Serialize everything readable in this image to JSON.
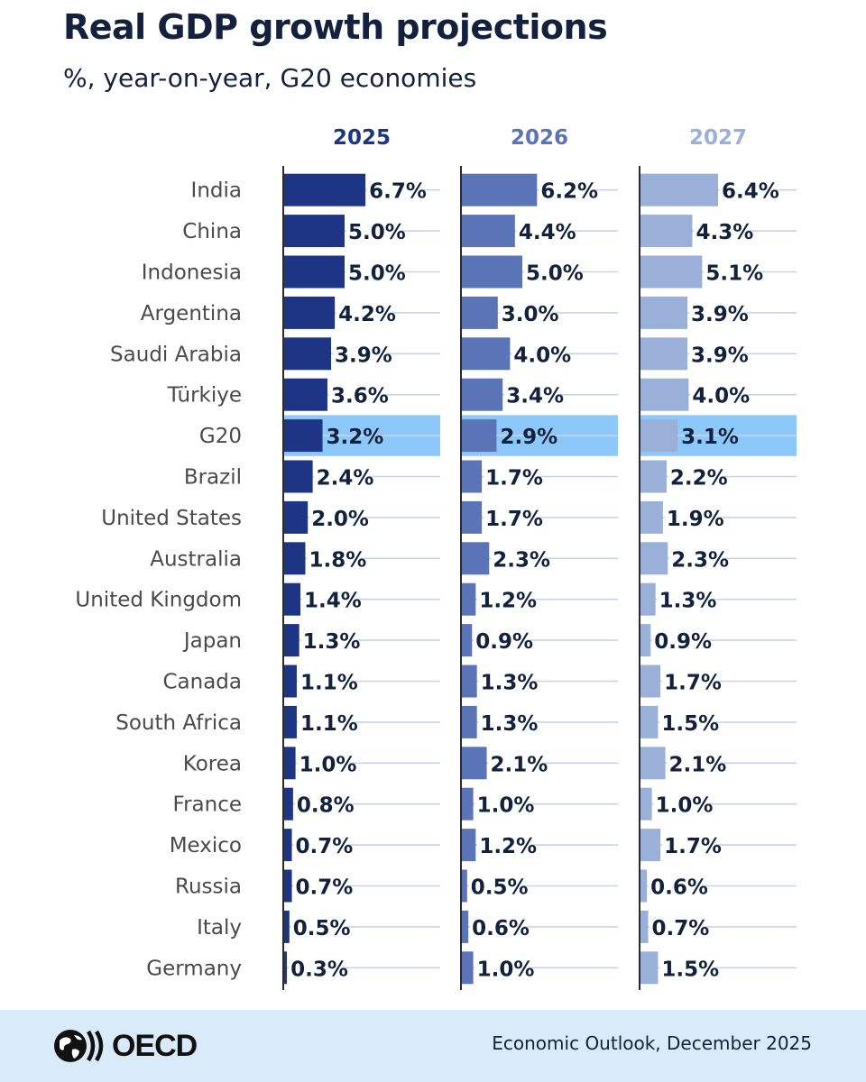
{
  "title": "Real GDP growth projections",
  "subtitle": "%, year-on-year, G20 economies",
  "footer": {
    "logo_text": "OECD",
    "source": "Economic Outlook, December 2025"
  },
  "colors": {
    "series_2025": "#1e3585",
    "series_2026": "#5a74b7",
    "series_2027": "#9bb0d8",
    "highlight": "#8dc8fb",
    "label_text": "#14213d",
    "country_text": "#4a4a4a"
  },
  "chart_data": {
    "type": "bar",
    "title": "Real GDP growth projections",
    "subtitle": "%, year-on-year, G20 economies",
    "unit": "%",
    "orientation": "horizontal",
    "highlighted_category": "G20",
    "categories": [
      "India",
      "China",
      "Indonesia",
      "Argentina",
      "Saudi Arabia",
      "Türkiye",
      "G20",
      "Brazil",
      "United States",
      "Australia",
      "United Kingdom",
      "Japan",
      "Canada",
      "South Africa",
      "Korea",
      "France",
      "Mexico",
      "Russia",
      "Italy",
      "Germany"
    ],
    "series": [
      {
        "name": "2025",
        "values": [
          6.7,
          5.0,
          5.0,
          4.2,
          3.9,
          3.6,
          3.2,
          2.4,
          2.0,
          1.8,
          1.4,
          1.3,
          1.1,
          1.1,
          1.0,
          0.8,
          0.7,
          0.7,
          0.5,
          0.3
        ],
        "labels": [
          "6.7%",
          "5.0%",
          "5.0%",
          "4.2%",
          "3.9%",
          "3.6%",
          "3.2%",
          "2.4%",
          "2.0%",
          "1.8%",
          "1.4%",
          "1.3%",
          "1.1%",
          "1.1%",
          "1.0%",
          "0.8%",
          "0.7%",
          "0.7%",
          "0.5%",
          "0.3%"
        ]
      },
      {
        "name": "2026",
        "values": [
          6.2,
          4.4,
          5.0,
          3.0,
          4.0,
          3.4,
          2.9,
          1.7,
          1.7,
          2.3,
          1.2,
          0.9,
          1.3,
          1.3,
          2.1,
          1.0,
          1.2,
          0.5,
          0.6,
          1.0
        ],
        "labels": [
          "6.2%",
          "4.4%",
          "5.0%",
          "3.0%",
          "4.0%",
          "3.4%",
          "2.9%",
          "1.7%",
          "1.7%",
          "2.3%",
          "1.2%",
          "0.9%",
          "1.3%",
          "1.3%",
          "2.1%",
          "1.0%",
          "1.2%",
          "0.5%",
          "0.6%",
          "1.0%"
        ]
      },
      {
        "name": "2027",
        "values": [
          6.4,
          4.3,
          5.1,
          3.9,
          3.9,
          4.0,
          3.1,
          2.2,
          1.9,
          2.3,
          1.3,
          0.9,
          1.7,
          1.5,
          2.1,
          1.0,
          1.7,
          0.6,
          0.7,
          1.5
        ],
        "labels": [
          "6.4%",
          "4.3%",
          "5.1%",
          "3.9%",
          "3.9%",
          "4.0%",
          "3.1%",
          "2.2%",
          "1.9%",
          "2.3%",
          "1.3%",
          "0.9%",
          "1.7%",
          "1.5%",
          "2.1%",
          "1.0%",
          "1.7%",
          "0.6%",
          "0.7%",
          "1.5%"
        ]
      }
    ],
    "xlim": [
      0,
      7
    ],
    "grid": true,
    "legend": "column headers"
  }
}
